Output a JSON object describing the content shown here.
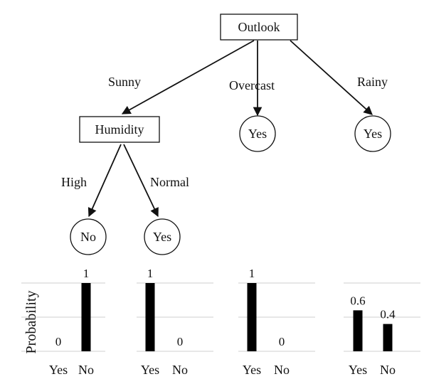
{
  "tree": {
    "root": "Outlook",
    "humidity": "Humidity",
    "leaf_overcast": "Yes",
    "leaf_rainy": "Yes",
    "leaf_high": "No",
    "leaf_normal": "Yes",
    "edge_sunny": "Sunny",
    "edge_overcast": "Overcast",
    "edge_rainy": "Rainy",
    "edge_high": "High",
    "edge_normal": "Normal"
  },
  "chart_data": [
    {
      "type": "bar",
      "categories": [
        "Yes",
        "No"
      ],
      "values": [
        0,
        1
      ],
      "data_labels": [
        "0",
        "1"
      ],
      "ylabel": "Probability",
      "ylim": [
        0,
        1
      ]
    },
    {
      "type": "bar",
      "categories": [
        "Yes",
        "No"
      ],
      "values": [
        1,
        0
      ],
      "data_labels": [
        "1",
        "0"
      ],
      "ylabel": "",
      "ylim": [
        0,
        1
      ]
    },
    {
      "type": "bar",
      "categories": [
        "Yes",
        "No"
      ],
      "values": [
        1,
        0
      ],
      "data_labels": [
        "1",
        "0"
      ],
      "ylabel": "",
      "ylim": [
        0,
        1
      ]
    },
    {
      "type": "bar",
      "categories": [
        "Yes",
        "No"
      ],
      "values": [
        0.6,
        0.4
      ],
      "data_labels": [
        "0.6",
        "0.4"
      ],
      "ylabel": "",
      "ylim": [
        0,
        1
      ]
    }
  ]
}
